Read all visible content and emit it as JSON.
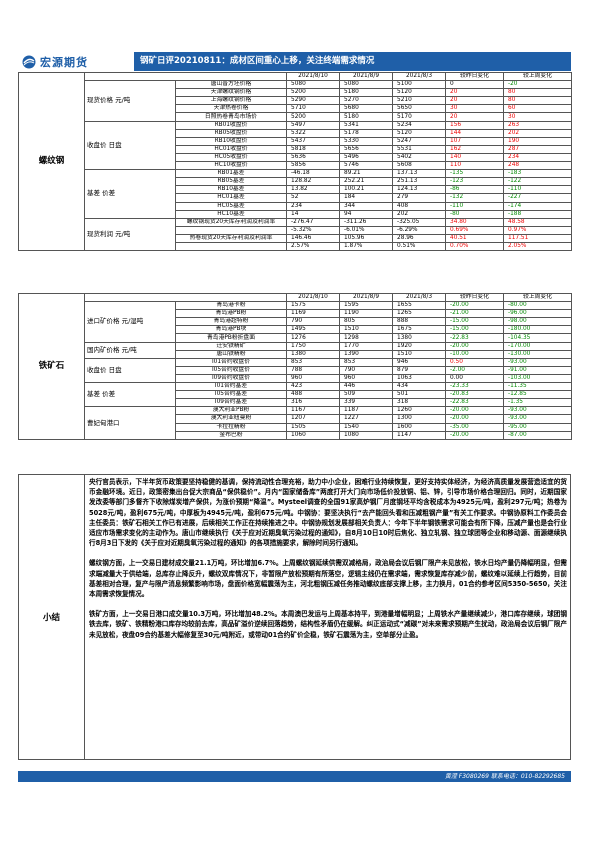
{
  "header": {
    "logo_text": "宏源期货",
    "title": "钢矿日评20210811：成材区间重心上移，关注终端需求情况",
    "brand_color": "#1f5fa8"
  },
  "rebar": {
    "section": "螺纹钢",
    "columns": [
      "",
      "",
      "2021/8/10",
      "2021/8/9",
      "2021/8/3",
      "较昨日变化",
      "较上周变化"
    ],
    "groups": [
      {
        "name": "现货价格 元/吨",
        "rows": [
          {
            "label": "唐山普方坯价格",
            "v": [
              "5080",
              "5080",
              "5100",
              "0",
              "-20"
            ]
          },
          {
            "label": "天津螺纹钢价格",
            "v": [
              "5200",
              "5180",
              "5120",
              "20",
              "80"
            ]
          },
          {
            "label": "上海螺纹钢价格",
            "v": [
              "5290",
              "5270",
              "5210",
              "20",
              "80"
            ]
          },
          {
            "label": "天津热卷价格",
            "v": [
              "5710",
              "5680",
              "5650",
              "30",
              "60"
            ]
          },
          {
            "label": "日照热卷青岛市场价",
            "v": [
              "5200",
              "5180",
              "5170",
              "20",
              "30"
            ]
          }
        ]
      },
      {
        "name": "收盘价 日盘",
        "rows": [
          {
            "label": "RB01收盘价",
            "v": [
              "5497",
              "5341",
              "5234",
              "156",
              "263"
            ]
          },
          {
            "label": "RB05收盘价",
            "v": [
              "5322",
              "5178",
              "5120",
              "144",
              "202"
            ]
          },
          {
            "label": "RB10收盘价",
            "v": [
              "5437",
              "5330",
              "5247",
              "107",
              "190"
            ]
          },
          {
            "label": "HC01收盘价",
            "v": [
              "5818",
              "5656",
              "5531",
              "162",
              "287"
            ]
          },
          {
            "label": "HC05收盘价",
            "v": [
              "5636",
              "5496",
              "5402",
              "140",
              "234"
            ]
          },
          {
            "label": "HC10收盘价",
            "v": [
              "5856",
              "5746",
              "5608",
              "110",
              "248"
            ]
          }
        ]
      },
      {
        "name": "基差 价差",
        "rows": [
          {
            "label": "RB01基差",
            "v": [
              "-46.18",
              "89.21",
              "137.13",
              "-135",
              "-183"
            ]
          },
          {
            "label": "RB05基差",
            "v": [
              "128.82",
              "252.21",
              "251.13",
              "-123",
              "-122"
            ]
          },
          {
            "label": "RB10基差",
            "v": [
              "13.82",
              "100.21",
              "124.13",
              "-86",
              "-110"
            ]
          },
          {
            "label": "HC01基差",
            "v": [
              "52",
              "184",
              "279",
              "-132",
              "-227"
            ]
          },
          {
            "label": "HC05基差",
            "v": [
              "234",
              "344",
              "408",
              "-110",
              "-174"
            ]
          },
          {
            "label": "HC10基差",
            "v": [
              "14",
              "94",
              "202",
              "-80",
              "-188"
            ]
          }
        ]
      },
      {
        "name": "现货利润 元/吨",
        "rows": [
          {
            "label": "螺纹钢现货20天库存利润及利润率",
            "v": [
              "-276.47",
              "-311.26",
              "-325.05",
              "34.80",
              "48.58"
            ]
          },
          {
            "label": "",
            "v": [
              "-5.32%",
              "-6.01%",
              "-6.29%",
              "0.69%",
              "0.97%"
            ]
          },
          {
            "label": "热卷现货20天库存利润及利润率",
            "v": [
              "146.46",
              "105.96",
              "28.96",
              "40.51",
              "117.51"
            ]
          },
          {
            "label": "",
            "v": [
              "2.57%",
              "1.87%",
              "0.51%",
              "0.70%",
              "2.05%"
            ]
          }
        ]
      }
    ]
  },
  "iron_ore": {
    "section": "铁矿石",
    "columns": [
      "",
      "",
      "2021/8/10",
      "2021/8/9",
      "2021/8/3",
      "较昨日变化",
      "较上周变化"
    ],
    "groups": [
      {
        "name": "进口矿价格 元/湿吨",
        "rows": [
          {
            "label": "青岛港卡粉",
            "v": [
              "1575",
              "1595",
              "1655",
              "-20.00",
              "-80.00"
            ]
          },
          {
            "label": "青岛港PB粉",
            "v": [
              "1169",
              "1190",
              "1265",
              "-21.00",
              "-96.00"
            ]
          },
          {
            "label": "青岛港超特粉",
            "v": [
              "790",
              "805",
              "888",
              "-15.00",
              "-98.00"
            ]
          },
          {
            "label": "青岛港PB块",
            "v": [
              "1495",
              "1510",
              "1675",
              "-15.00",
              "-180.00"
            ]
          },
          {
            "label": "青岛港PB粉折盘面",
            "v": [
              "1276",
              "1298",
              "1380",
              "-22.83",
              "-104.35"
            ]
          }
        ]
      },
      {
        "name": "国内矿价格 元/吨",
        "rows": [
          {
            "label": "迁安铁精矿",
            "v": [
              "1750",
              "1770",
              "1920",
              "-20.00",
              "-170.00"
            ]
          },
          {
            "label": "唐山铁精粉",
            "v": [
              "1380",
              "1390",
              "1510",
              "-10.00",
              "-130.00"
            ]
          }
        ]
      },
      {
        "name": "收盘价 日盘",
        "rows": [
          {
            "label": "I01合约收盘价",
            "v": [
              "853",
              "853",
              "946",
              "0.50",
              "-93.00"
            ]
          },
          {
            "label": "I05合约收盘价",
            "v": [
              "788",
              "790",
              "879",
              "-2.00",
              "-91.00"
            ]
          },
          {
            "label": "I09合约收盘价",
            "v": [
              "960",
              "960",
              "1063",
              "0.00",
              "-103.00"
            ]
          }
        ]
      },
      {
        "name": "基差 价差",
        "rows": [
          {
            "label": "I01合约基差",
            "v": [
              "423",
              "446",
              "434",
              "-23.33",
              "-11.35"
            ]
          },
          {
            "label": "I05合约基差",
            "v": [
              "488",
              "509",
              "501",
              "-20.83",
              "-12.85"
            ]
          },
          {
            "label": "I09合约基差",
            "v": [
              "316",
              "339",
              "318",
              "-22.83",
              "-1.35"
            ]
          }
        ]
      },
      {
        "name": "曹妃甸港口",
        "rows": [
          {
            "label": "澳大利亚PB粉",
            "v": [
              "1167",
              "1187",
              "1260",
              "-20.00",
              "-93.00"
            ]
          },
          {
            "label": "澳大利亚纽曼粉",
            "v": [
              "1207",
              "1227",
              "1300",
              "-20.00",
              "-93.00"
            ]
          },
          {
            "label": "卡拉拉精粉",
            "v": [
              "1505",
              "1540",
              "1600",
              "-35.00",
              "-95.00"
            ]
          },
          {
            "label": "金布巴粉",
            "v": [
              "1060",
              "1080",
              "1147",
              "-20.00",
              "-87.00"
            ]
          }
        ]
      }
    ]
  },
  "summary": {
    "label": "小结",
    "paragraphs": [
      "央行官员表示，下半年货币政策要坚持稳健的基调，保持流动性合理充裕，助力中小企业，困难行业持续恢复，更好支持实体经济，为经济高质量发展营造适宜的货币金融环境。近日，政策密集出台促大宗商品“保供稳价”。月内“国家储备库”两度打开大门向市场低价投放铜、铝、锌，引导市场价格合理回归。同时，近期国家发改委等部门多督齐下收除煤炭增产保供，为涨价预期“降温”。Mysteel调查的全国91家高炉钢厂月度钢坯平均含税成本为4925元/吨，盈利297元/吨；热卷为5028元/吨，盈利675元/吨，中厚板为4945元/吨，盈利675元/吨。中钢协：要坚决执行“去产能回头看和压减粗钢产量”有关工作要求。中钢协原料工作委员会主任委员：铁矿石相关工作已有进展，后续相关工作正在持续推进之中。中钢协规划发展部相关负责人：今年下半年钢铁需求可能会有所下降，压减产量也是会行业适应市场需求变化的主动作为。唐山市继续执行《关于应对近期臭氧污染过程的通知》，自8月10日10时后焦化、独立轧钢、独立球团等企业和移动源、面源继续执行8月3日下发的《关于应对近期臭氧污染过程的通知》的各项措施要求，解除时间另行通知。",
      "螺纹钢方面，上一交易日建材成交量21.1万吨，环比增加6.7%。上周螺纹钢延续供需双减格局，政治局会议后钢厂限产未见放松，铁水日均产量仍降幅明显，但需求端减量大于供给端，总库存止降反升，螺纹双库情况下，非暂限产放松预期有所落空，逻辑主线仍在需求端，需求恢复库存减少前，螺纹难以延续上行趋势，目前基差相对合理，复产与限产消息频繁影响市场，盘面价格宽幅震荡为主，河北粗钢压减任务推动螺纹底部支撑上移，主力换月，01合约参考区间5350-5650，关注本周需求恢复情况。",
      "铁矿方面，上一交易日港口成交量10.3万吨，环比增加48.2%。本周澳巴发运与上周基本持平，到港量增幅明显；上周铁水产量继续减少，港口库存继续，球团钢铁去库，铁矿、铁精粉港口库存均较前去库，高品矿溢价逆续回落趋势，结构性矛盾仍在缓解。纠正运动式“减碳”对未来需求预期产生扰动，政治局会议后钢厂限产未见放松，夜盘09合约基差大幅修复至30元/吨附近，或带动01合约矿价企稳，铁矿石震荡为主，空单部分止盈。"
    ]
  },
  "footer": {
    "text": "黄滢  F3080269  联系电话：010-82292685"
  }
}
